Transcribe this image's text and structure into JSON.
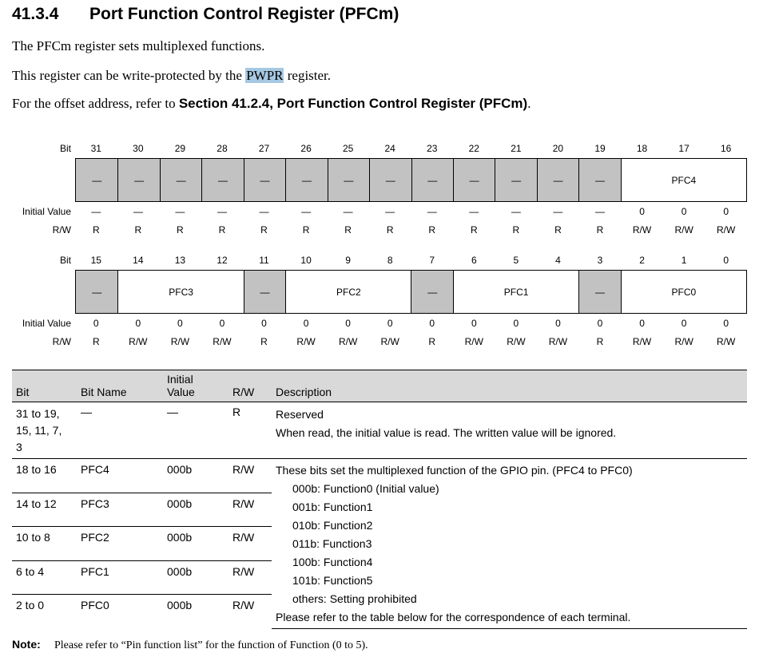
{
  "heading": {
    "number": "41.3.4",
    "title": "Port Function Control Register (PFCm)"
  },
  "intro": {
    "p1": "The PFCm register sets multiplexed functions.",
    "p2_before": "This register can be write-protected by the ",
    "p2_highlight": "PWPR",
    "p2_after": " register.",
    "p3_before": "For the offset address, refer to ",
    "p3_ref": "Section 41.2.4, Port Function Control Register (PFCm)",
    "p3_after": "."
  },
  "register": {
    "labels": {
      "bit": "Bit",
      "initial_value": "Initial Value",
      "rw": "R/W"
    },
    "upper": {
      "bits": [
        "31",
        "30",
        "29",
        "28",
        "27",
        "26",
        "25",
        "24",
        "23",
        "22",
        "21",
        "20",
        "19",
        "18",
        "17",
        "16"
      ],
      "fields": [
        {
          "label": "—",
          "span": 1,
          "reserved": true
        },
        {
          "label": "—",
          "span": 1,
          "reserved": true
        },
        {
          "label": "—",
          "span": 1,
          "reserved": true
        },
        {
          "label": "—",
          "span": 1,
          "reserved": true
        },
        {
          "label": "—",
          "span": 1,
          "reserved": true
        },
        {
          "label": "—",
          "span": 1,
          "reserved": true
        },
        {
          "label": "—",
          "span": 1,
          "reserved": true
        },
        {
          "label": "—",
          "span": 1,
          "reserved": true
        },
        {
          "label": "—",
          "span": 1,
          "reserved": true
        },
        {
          "label": "—",
          "span": 1,
          "reserved": true
        },
        {
          "label": "—",
          "span": 1,
          "reserved": true
        },
        {
          "label": "—",
          "span": 1,
          "reserved": true
        },
        {
          "label": "—",
          "span": 1,
          "reserved": true
        },
        {
          "label": "PFC4",
          "span": 3,
          "reserved": false
        }
      ],
      "initial": [
        "—",
        "—",
        "—",
        "—",
        "—",
        "—",
        "—",
        "—",
        "—",
        "—",
        "—",
        "—",
        "—",
        "0",
        "0",
        "0"
      ],
      "rw": [
        "R",
        "R",
        "R",
        "R",
        "R",
        "R",
        "R",
        "R",
        "R",
        "R",
        "R",
        "R",
        "R",
        "R/W",
        "R/W",
        "R/W"
      ]
    },
    "lower": {
      "bits": [
        "15",
        "14",
        "13",
        "12",
        "11",
        "10",
        "9",
        "8",
        "7",
        "6",
        "5",
        "4",
        "3",
        "2",
        "1",
        "0"
      ],
      "fields": [
        {
          "label": "—",
          "span": 1,
          "reserved": true
        },
        {
          "label": "PFC3",
          "span": 3,
          "reserved": false
        },
        {
          "label": "—",
          "span": 1,
          "reserved": true
        },
        {
          "label": "PFC2",
          "span": 3,
          "reserved": false
        },
        {
          "label": "—",
          "span": 1,
          "reserved": true
        },
        {
          "label": "PFC1",
          "span": 3,
          "reserved": false
        },
        {
          "label": "—",
          "span": 1,
          "reserved": true
        },
        {
          "label": "PFC0",
          "span": 3,
          "reserved": false
        }
      ],
      "initial": [
        "0",
        "0",
        "0",
        "0",
        "0",
        "0",
        "0",
        "0",
        "0",
        "0",
        "0",
        "0",
        "0",
        "0",
        "0",
        "0"
      ],
      "rw": [
        "R",
        "R/W",
        "R/W",
        "R/W",
        "R",
        "R/W",
        "R/W",
        "R/W",
        "R",
        "R/W",
        "R/W",
        "R/W",
        "R",
        "R/W",
        "R/W",
        "R/W"
      ]
    }
  },
  "table": {
    "headers": {
      "bit": "Bit",
      "bit_name": "Bit Name",
      "initial_value_1": "Initial",
      "initial_value_2": "Value",
      "rw": "R/W",
      "description": "Description"
    },
    "reserved_row": {
      "bit_lines": [
        "31 to 19,",
        "15, 11, 7,",
        "3"
      ],
      "bit_name": "—",
      "initial": "—",
      "rw": "R",
      "desc": [
        "Reserved",
        "When read, the initial value is read. The written value will be ignored."
      ]
    },
    "pfc_rows": [
      {
        "bit": "18 to 16",
        "name": "PFC4",
        "initial": "000b",
        "rw": "R/W"
      },
      {
        "bit": "14 to 12",
        "name": "PFC3",
        "initial": "000b",
        "rw": "R/W"
      },
      {
        "bit": "10 to 8",
        "name": "PFC2",
        "initial": "000b",
        "rw": "R/W"
      },
      {
        "bit": "6 to 4",
        "name": "PFC1",
        "initial": "000b",
        "rw": "R/W"
      },
      {
        "bit": "2 to 0",
        "name": "PFC0",
        "initial": "000b",
        "rw": "R/W"
      }
    ],
    "pfc_desc": {
      "intro": "These bits set the multiplexed function of the GPIO pin. (PFC4 to PFC0)",
      "options": [
        "000b: Function0 (Initial value)",
        "001b: Function1",
        "010b: Function2",
        "011b: Function3",
        "100b: Function4",
        "101b: Function5",
        "others: Setting prohibited"
      ],
      "footer": "Please refer to the table below for the correspondence of each terminal."
    }
  },
  "note": {
    "label": "Note:",
    "text": "Please refer to “Pin function list” for the function of Function (0 to 5)."
  },
  "colors": {
    "reserved_fill": "#c2c2c2",
    "header_fill": "#d9d9d9",
    "highlight": "#a6c8e2"
  }
}
